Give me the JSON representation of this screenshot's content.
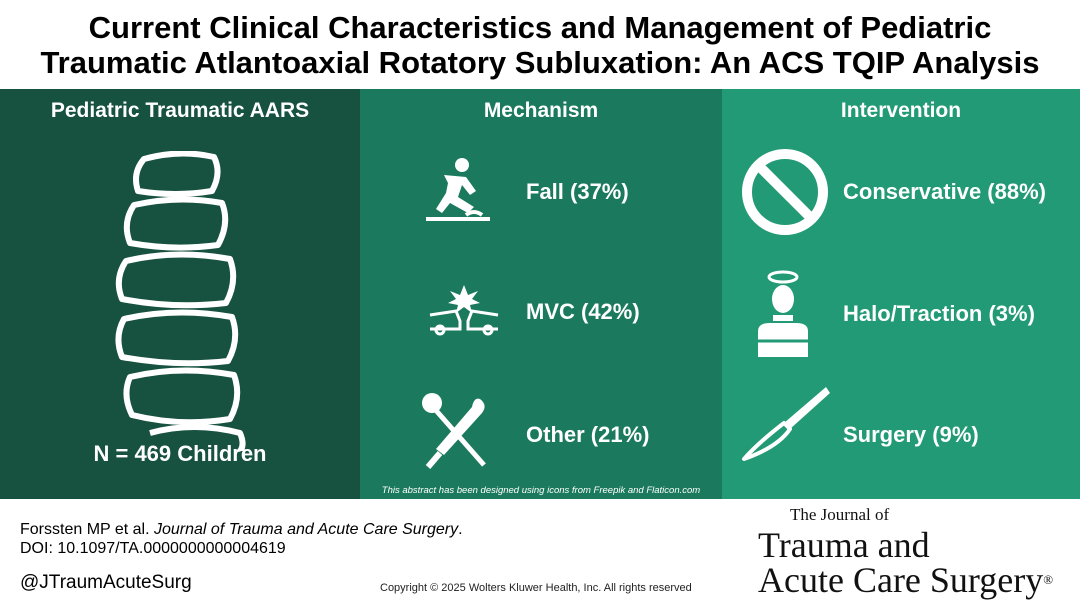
{
  "title": {
    "line1": "Current Clinical Characteristics and Management of Pediatric",
    "line2": "Traumatic Atlantoaxial Rotatory Subluxation: An ACS TQIP Analysis"
  },
  "panels": {
    "left": {
      "heading": "Pediatric Traumatic AARS",
      "count": "N = 469 Children",
      "icon": "spine-icon"
    },
    "mechanism": {
      "heading": "Mechanism",
      "items": [
        {
          "label": "Fall (37%)",
          "icon": "fall-icon",
          "percent": 37
        },
        {
          "label": "MVC (42%)",
          "icon": "car-crash-icon",
          "percent": 42
        },
        {
          "label": "Other (21%)",
          "icon": "bat-ball-icon",
          "percent": 21
        }
      ],
      "credit": "This abstract has been designed using icons from Freepik and Flaticon.com"
    },
    "intervention": {
      "heading": "Intervention",
      "items": [
        {
          "label": "Conservative (88%)",
          "icon": "no-symbol-icon",
          "percent": 88
        },
        {
          "label": "Halo/Traction (3%)",
          "icon": "halo-brace-icon",
          "percent": 3
        },
        {
          "label": "Surgery (9%)",
          "icon": "scalpel-icon",
          "percent": 9
        }
      ]
    }
  },
  "colors": {
    "left_panel": "#175140",
    "middle_panel": "#1b7a5d",
    "right_panel": "#219a75"
  },
  "footer": {
    "authors": "Forssten MP et al.",
    "journal": "Journal of Trauma and Acute Care Surgery",
    "journal_end": ".",
    "doi": "DOI: 10.1097/TA.0000000000004619",
    "handle": "@JTraumAcuteSurg",
    "copyright": "Copyright © 2025  Wolters Kluwer Health, Inc. All rights reserved"
  },
  "logo": {
    "small": "The Journal of",
    "line1": "Trauma and",
    "line2": "Acute Care Surgery",
    "reg": "®"
  }
}
